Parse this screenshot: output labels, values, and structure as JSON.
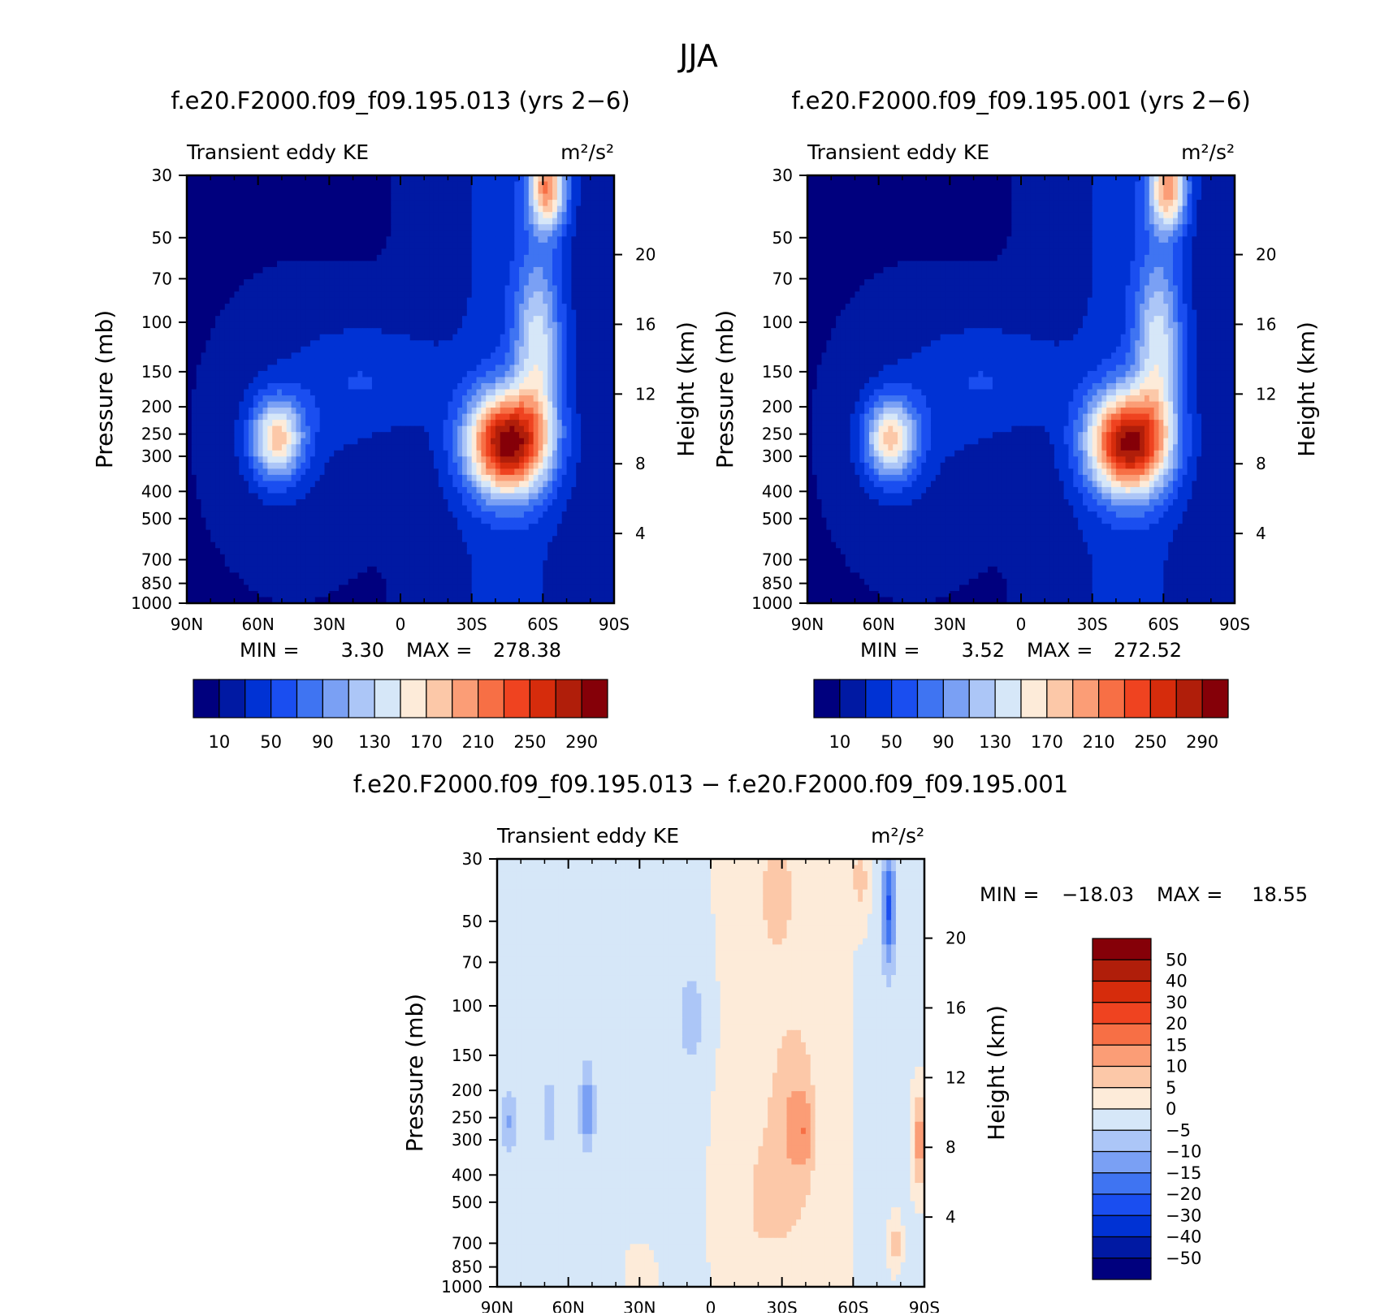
{
  "title": "JJA",
  "chart_data": [
    {
      "type": "heatmap",
      "title": "f.e20.F2000.f09_f09.195.013 (yrs 2−6)",
      "subtitle_left": "Transient eddy KE",
      "units": "m²/s²",
      "ylabel": "Pressure (mb)",
      "ylabel_right": "Height (km)",
      "x_ticks": [
        "90N",
        "60N",
        "30N",
        "0",
        "30S",
        "60S",
        "90S"
      ],
      "x_range": [
        90,
        -90
      ],
      "y_ticks": [
        30,
        50,
        70,
        100,
        150,
        200,
        250,
        300,
        400,
        500,
        700,
        850,
        1000
      ],
      "y_range": [
        30,
        1000
      ],
      "y_scale": "log",
      "height_ticks": [
        4,
        8,
        12,
        16,
        20
      ],
      "stats": {
        "min_label": "MIN =",
        "min": "3.30",
        "max_label": "MAX =",
        "max": "278.38"
      },
      "colorbar_labels": [
        "10",
        "50",
        "90",
        "130",
        "170",
        "210",
        "250",
        "290"
      ],
      "blobs": [
        {
          "lat": -45,
          "p": 270,
          "amp": 265,
          "sx": 17,
          "sy": 0.42
        },
        {
          "lat": 52,
          "p": 260,
          "amp": 150,
          "sx": 11,
          "sy": 0.33
        },
        {
          "lat": -62,
          "p": 33,
          "amp": 180,
          "sx": 8,
          "sy": 0.35
        },
        {
          "lat": -58,
          "p": 120,
          "amp": 110,
          "sx": 10,
          "sy": 0.75
        },
        {
          "lat": 20,
          "p": 160,
          "amp": 25,
          "sx": 25,
          "sy": 0.5
        }
      ]
    },
    {
      "type": "heatmap",
      "title": "f.e20.F2000.f09_f09.195.001 (yrs 2−6)",
      "subtitle_left": "Transient eddy KE",
      "units": "m²/s²",
      "ylabel": "Pressure (mb)",
      "ylabel_right": "Height (km)",
      "x_ticks": [
        "90N",
        "60N",
        "30N",
        "0",
        "30S",
        "60S",
        "90S"
      ],
      "x_range": [
        90,
        -90
      ],
      "y_ticks": [
        30,
        50,
        70,
        100,
        150,
        200,
        250,
        300,
        400,
        500,
        700,
        850,
        1000
      ],
      "y_range": [
        30,
        1000
      ],
      "y_scale": "log",
      "height_ticks": [
        4,
        8,
        12,
        16,
        20
      ],
      "stats": {
        "min_label": "MIN =",
        "min": "3.52",
        "max_label": "MAX =",
        "max": "272.52"
      },
      "colorbar_labels": [
        "10",
        "50",
        "90",
        "130",
        "170",
        "210",
        "250",
        "290"
      ],
      "blobs": [
        {
          "lat": -45,
          "p": 270,
          "amp": 258,
          "sx": 17,
          "sy": 0.42
        },
        {
          "lat": 55,
          "p": 260,
          "amp": 150,
          "sx": 11,
          "sy": 0.33
        },
        {
          "lat": -62,
          "p": 33,
          "amp": 175,
          "sx": 8,
          "sy": 0.35
        },
        {
          "lat": -58,
          "p": 120,
          "amp": 110,
          "sx": 10,
          "sy": 0.75
        },
        {
          "lat": 20,
          "p": 160,
          "amp": 25,
          "sx": 25,
          "sy": 0.5
        }
      ]
    },
    {
      "type": "heatmap",
      "title": "f.e20.F2000.f09_f09.195.013 − f.e20.F2000.f09_f09.195.001",
      "subtitle_left": "Transient eddy KE",
      "units": "m²/s²",
      "ylabel": "Pressure (mb)",
      "ylabel_right": "Height (km)",
      "x_ticks": [
        "90N",
        "60N",
        "30N",
        "0",
        "30S",
        "60S",
        "90S"
      ],
      "x_range": [
        90,
        -90
      ],
      "y_ticks": [
        30,
        50,
        70,
        100,
        150,
        200,
        250,
        300,
        400,
        500,
        700,
        850,
        1000
      ],
      "y_range": [
        30,
        1000
      ],
      "y_scale": "log",
      "height_ticks": [
        4,
        8,
        12,
        16,
        20
      ],
      "stats": {
        "min_label": "MIN =",
        "min": "−18.03",
        "max_label": "MAX =",
        "max": "18.55"
      },
      "colorbar_labels": [
        "50",
        "40",
        "30",
        "20",
        "15",
        "10",
        "5",
        "0",
        "−5",
        "−10",
        "−15",
        "−20",
        "−30",
        "−40",
        "−50"
      ],
      "blobs": [
        {
          "lat": 85,
          "p": 260,
          "amp": -9,
          "sx": 4,
          "sy": 0.25
        },
        {
          "lat": 52,
          "p": 230,
          "amp": -13,
          "sx": 3,
          "sy": 0.35
        },
        {
          "lat": 68,
          "p": 240,
          "amp": -7,
          "sx": 3,
          "sy": 0.3
        },
        {
          "lat": 8,
          "p": 110,
          "amp": -8,
          "sx": 6,
          "sy": 0.4
        },
        {
          "lat": -28,
          "p": 40,
          "amp": 7,
          "sx": 7,
          "sy": 0.5
        },
        {
          "lat": -35,
          "p": 260,
          "amp": 9,
          "sx": 9,
          "sy": 0.8
        },
        {
          "lat": -40,
          "p": 280,
          "amp": 7,
          "sx": 3,
          "sy": 0.3
        },
        {
          "lat": -63,
          "p": 35,
          "amp": 9,
          "sx": 3,
          "sy": 0.3
        },
        {
          "lat": -75,
          "p": 45,
          "amp": -20,
          "sx": 3,
          "sy": 0.5
        },
        {
          "lat": -88,
          "p": 300,
          "amp": 15,
          "sx": 3,
          "sy": 0.4
        },
        {
          "lat": -78,
          "p": 700,
          "amp": 9,
          "sx": 2.5,
          "sy": 0.2
        },
        {
          "lat": -20,
          "p": 500,
          "amp": 4,
          "sx": 12,
          "sy": 0.8
        },
        {
          "lat": 30,
          "p": 900,
          "amp": 3,
          "sx": 8,
          "sy": 0.3
        }
      ]
    }
  ]
}
